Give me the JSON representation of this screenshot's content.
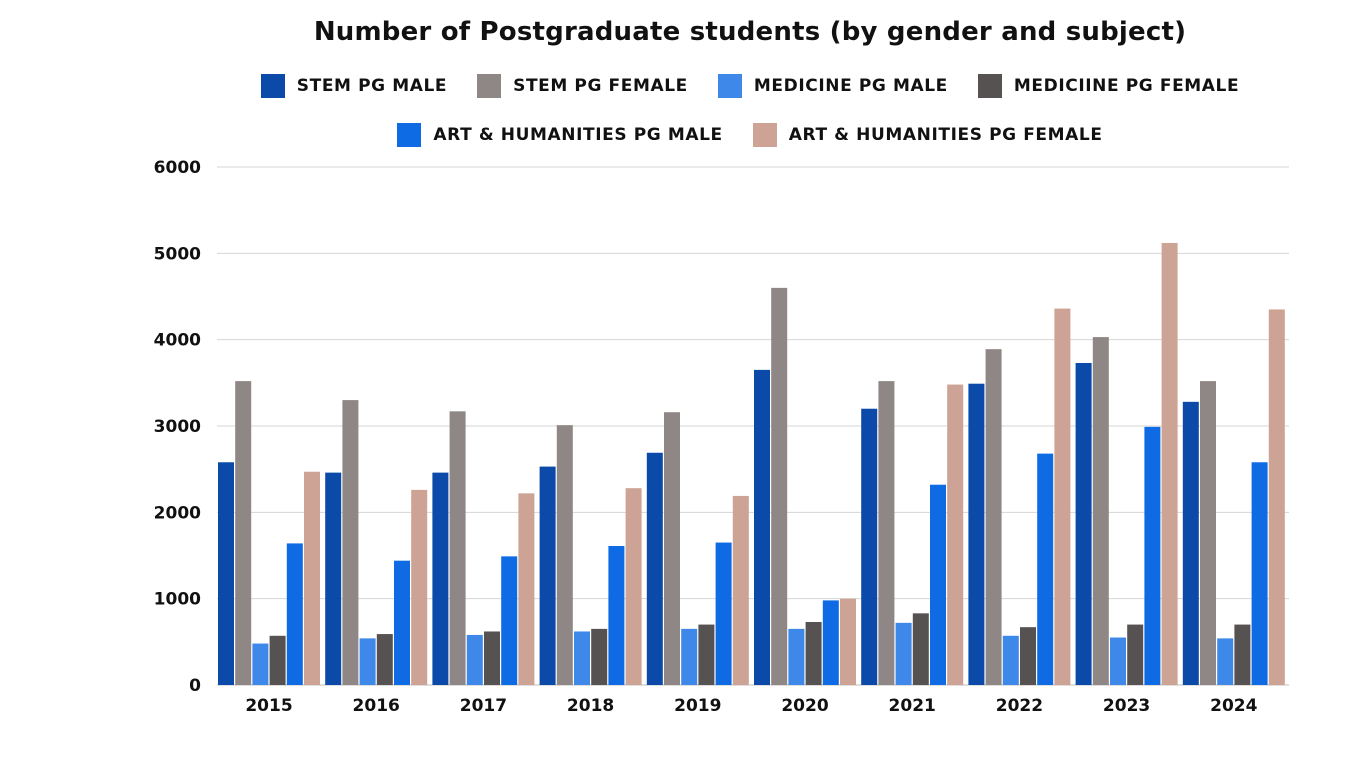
{
  "chart_data": {
    "type": "bar",
    "title": "Number of Postgraduate students (by gender and subject)",
    "xlabel": "",
    "ylabel": "",
    "ylim": [
      0,
      6000
    ],
    "yticks": [
      0,
      1000,
      2000,
      3000,
      4000,
      5000,
      6000
    ],
    "grid": true,
    "legend_position": "top",
    "categories": [
      "2015",
      "2016",
      "2017",
      "2018",
      "2019",
      "2020",
      "2021",
      "2022",
      "2023",
      "2024"
    ],
    "series": [
      {
        "name": "STEM PG MALE",
        "color": "#0b4aa8",
        "values": [
          2580,
          2460,
          2460,
          2530,
          2690,
          3650,
          3200,
          3490,
          3730,
          3280
        ]
      },
      {
        "name": "STEM PG FEMALE",
        "color": "#8e8786",
        "values": [
          3520,
          3300,
          3170,
          3010,
          3160,
          4600,
          3520,
          3890,
          4030,
          3520
        ]
      },
      {
        "name": "MEDICINE PG MALE",
        "color": "#3e88ea",
        "values": [
          480,
          540,
          580,
          620,
          650,
          650,
          720,
          570,
          550,
          540
        ]
      },
      {
        "name": "MEDICIINE PG FEMALE",
        "color": "#565252",
        "values": [
          570,
          590,
          620,
          650,
          700,
          730,
          830,
          670,
          700,
          700
        ]
      },
      {
        "name": "ART & HUMANITIES PG MALE",
        "color": "#0e6be4",
        "values": [
          1640,
          1440,
          1490,
          1610,
          1650,
          980,
          2320,
          2680,
          2990,
          2580
        ]
      },
      {
        "name": "ART & HUMANITIES PG FEMALE",
        "color": "#cca394",
        "values": [
          2470,
          2260,
          2220,
          2280,
          2190,
          1000,
          3480,
          4360,
          5120,
          4350
        ]
      }
    ]
  }
}
